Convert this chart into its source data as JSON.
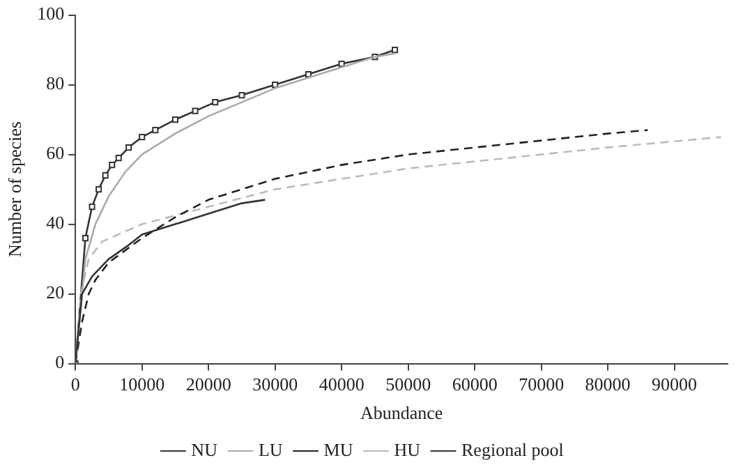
{
  "chart_data": {
    "type": "line",
    "xlabel": "Abundance",
    "ylabel": "Number of species",
    "xlim": [
      0,
      98000
    ],
    "ylim": [
      0,
      100
    ],
    "xticks": [
      0,
      10000,
      20000,
      30000,
      40000,
      50000,
      60000,
      70000,
      80000,
      90000
    ],
    "yticks": [
      0,
      20,
      40,
      60,
      80,
      100
    ],
    "grid": false,
    "legend": "bottom",
    "series": [
      {
        "name": "NU",
        "color": "#333333",
        "line_style": "solid",
        "marker": "none",
        "x": [
          0,
          1000,
          2500,
          5000,
          8000,
          10000,
          15000,
          20000,
          25000,
          28500
        ],
        "values": [
          0,
          20,
          25,
          30,
          34,
          37,
          40,
          43,
          46,
          47
        ]
      },
      {
        "name": "LU",
        "color": "#aaaaaa",
        "line_style": "solid",
        "marker": "none",
        "x": [
          0,
          1500,
          3000,
          5000,
          7500,
          10000,
          15000,
          20000,
          25000,
          30000,
          35000,
          40000,
          45000,
          48000
        ],
        "values": [
          0,
          30,
          40,
          48,
          55,
          60,
          66,
          71,
          75,
          79,
          82,
          85,
          88,
          89
        ]
      },
      {
        "name": "MU",
        "color": "#222222",
        "line_style": "dashed",
        "marker": "none",
        "x": [
          0,
          1000,
          2000,
          3000,
          5000,
          10000,
          15000,
          20000,
          30000,
          40000,
          50000,
          60000,
          70000,
          80000,
          86000
        ],
        "values": [
          0,
          12,
          20,
          24,
          29,
          36,
          42,
          47,
          53,
          57,
          60,
          62,
          64,
          66,
          67
        ]
      },
      {
        "name": "HU",
        "color": "#bbbbbb",
        "line_style": "dashed",
        "marker": "none",
        "x": [
          0,
          800,
          2000,
          4000,
          10000,
          20000,
          30000,
          40000,
          50000,
          60000,
          70000,
          80000,
          97000
        ],
        "values": [
          0,
          20,
          30,
          35,
          40,
          45,
          50,
          53,
          56,
          58,
          60,
          62,
          65
        ]
      },
      {
        "name": "Regional pool",
        "color": "#333333",
        "line_style": "solid",
        "marker": "square",
        "x": [
          0,
          1500,
          2500,
          3500,
          4500,
          5500,
          6500,
          8000,
          10000,
          12000,
          15000,
          18000,
          21000,
          25000,
          30000,
          35000,
          40000,
          45000,
          48000
        ],
        "values": [
          0,
          36,
          45,
          50,
          54,
          57,
          59,
          62,
          65,
          67,
          70,
          72.5,
          75,
          77,
          80,
          83,
          86,
          88,
          90
        ]
      }
    ]
  }
}
